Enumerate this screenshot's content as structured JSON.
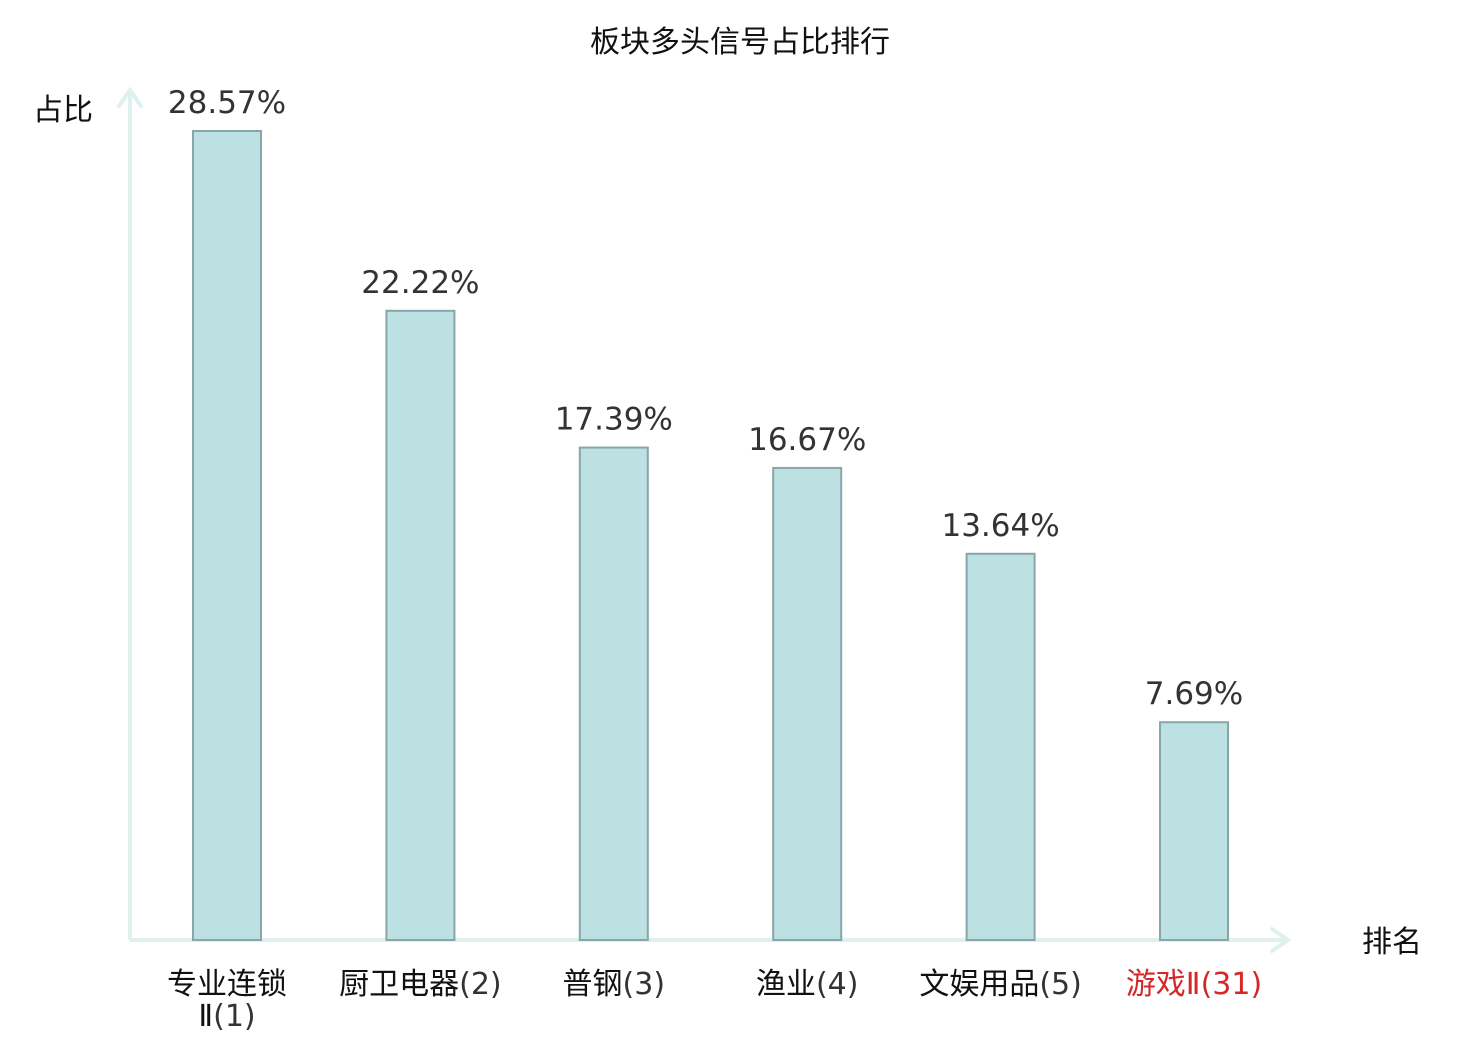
{
  "chart_data": {
    "type": "bar",
    "title": "板块多头信号占比排行",
    "ylabel": "占比",
    "xlabel": "排名",
    "categories": [
      {
        "name": "专业连锁Ⅱ",
        "rank": "(1)",
        "highlight": false
      },
      {
        "name": "厨卫电器",
        "rank": "(2)",
        "highlight": false
      },
      {
        "name": "普钢",
        "rank": "(3)",
        "highlight": false
      },
      {
        "name": "渔业",
        "rank": "(4)",
        "highlight": false
      },
      {
        "name": "文娱用品",
        "rank": "(5)",
        "highlight": false
      },
      {
        "name": "游戏Ⅱ",
        "rank": "(31)",
        "highlight": true
      }
    ],
    "values": [
      28.57,
      22.22,
      17.39,
      16.67,
      13.64,
      7.69
    ],
    "value_labels": [
      "28.57%",
      "22.22%",
      "17.39%",
      "16.67%",
      "13.64%",
      "7.69%"
    ],
    "ylim": [
      0,
      28.57
    ],
    "grid": false,
    "colors": {
      "bar_fill": "#bde0e3",
      "bar_stroke": "#86a6a9",
      "axis": "#dff1ee",
      "highlight": "#d62728"
    }
  }
}
